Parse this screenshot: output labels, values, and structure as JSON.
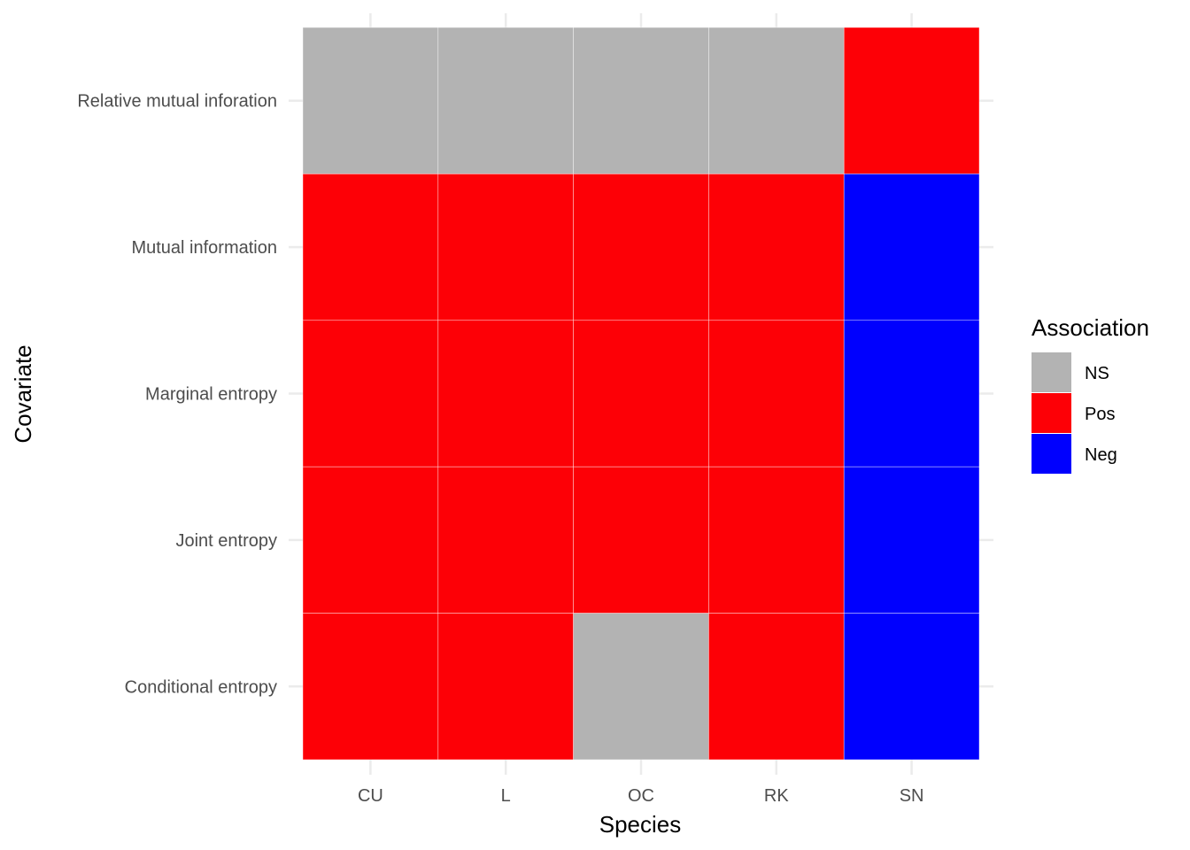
{
  "chart_data": {
    "type": "heatmap",
    "xlabel": "Species",
    "ylabel": "Covariate",
    "x_categories": [
      "CU",
      "L",
      "OC",
      "RK",
      "SN"
    ],
    "y_categories": [
      "Relative mutual inforation",
      "Mutual information",
      "Marginal entropy",
      "Joint entropy",
      "Conditional entropy"
    ],
    "cells": [
      [
        "NS",
        "NS",
        "NS",
        "NS",
        "Pos"
      ],
      [
        "Pos",
        "Pos",
        "Pos",
        "Pos",
        "Neg"
      ],
      [
        "Pos",
        "Pos",
        "Pos",
        "Pos",
        "Neg"
      ],
      [
        "Pos",
        "Pos",
        "Pos",
        "Pos",
        "Neg"
      ],
      [
        "Pos",
        "Pos",
        "NS",
        "Pos",
        "Neg"
      ]
    ],
    "legend": {
      "title": "Association",
      "position": "right",
      "entries": [
        {
          "label": "NS",
          "color": "#b3b3b3"
        },
        {
          "label": "Pos",
          "color": "#fd0006"
        },
        {
          "label": "Neg",
          "color": "#0000fe"
        }
      ]
    },
    "grid": true
  }
}
